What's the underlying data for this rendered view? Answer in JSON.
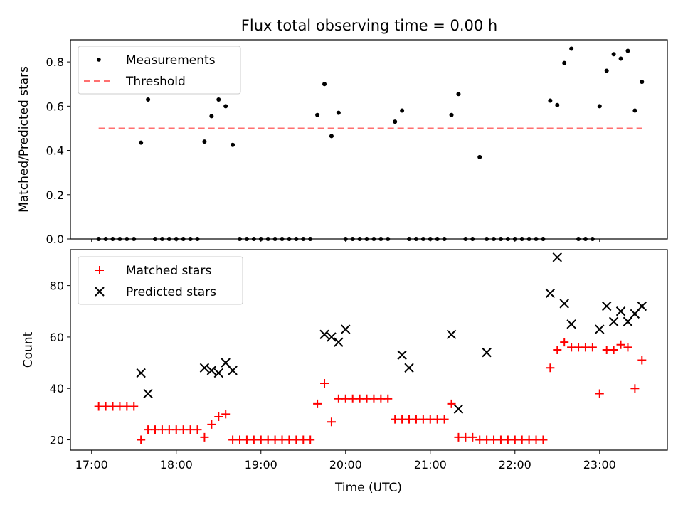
{
  "chart_data": [
    {
      "type": "scatter",
      "title": "Flux total observing time = 0.00 h",
      "xlabel": "",
      "ylabel": "Matched/Predicted stars",
      "xlim": [
        "16:45",
        "23:48"
      ],
      "ylim": [
        0,
        0.9
      ],
      "yticks": [
        0.0,
        0.2,
        0.4,
        0.6,
        0.8
      ],
      "ytick_labels": [
        "0.0",
        "0.2",
        "0.4",
        "0.6",
        "0.8"
      ],
      "legend_position": "top-left",
      "grid": false,
      "series": [
        {
          "name": "Measurements",
          "marker": "dot",
          "color": "#000000",
          "x": [
            "17:05",
            "17:10",
            "17:15",
            "17:20",
            "17:25",
            "17:30",
            "17:35",
            "17:40",
            "17:45",
            "17:50",
            "17:55",
            "18:00",
            "18:05",
            "18:10",
            "18:15",
            "18:20",
            "18:25",
            "18:30",
            "18:35",
            "18:40",
            "18:45",
            "18:50",
            "18:55",
            "19:00",
            "19:05",
            "19:10",
            "19:15",
            "19:20",
            "19:25",
            "19:30",
            "19:35",
            "19:40",
            "19:45",
            "19:50",
            "19:55",
            "20:00",
            "20:05",
            "20:10",
            "20:15",
            "20:20",
            "20:25",
            "20:30",
            "20:35",
            "20:40",
            "20:45",
            "20:50",
            "20:55",
            "21:00",
            "21:05",
            "21:10",
            "21:15",
            "21:20",
            "21:25",
            "21:30",
            "21:35",
            "21:40",
            "21:45",
            "21:50",
            "21:55",
            "22:00",
            "22:05",
            "22:10",
            "22:15",
            "22:20",
            "22:25",
            "22:30",
            "22:35",
            "22:40",
            "22:45",
            "22:50",
            "22:55",
            "23:00",
            "23:05",
            "23:10",
            "23:15",
            "23:20",
            "23:25",
            "23:30"
          ],
          "y": [
            0,
            0,
            0,
            0,
            0,
            0,
            0.435,
            0.63,
            0,
            0,
            0,
            0,
            0,
            0,
            0,
            0.44,
            0.555,
            0.63,
            0.6,
            0.425,
            0,
            0,
            0,
            0,
            0,
            0,
            0,
            0,
            0,
            0,
            0,
            0.56,
            0.7,
            0.465,
            0.57,
            0,
            0,
            0,
            0,
            0,
            0,
            0,
            0.53,
            0.58,
            0,
            0,
            0,
            0,
            0,
            0,
            0.56,
            0.655,
            0,
            0,
            0.37,
            0,
            0,
            0,
            0,
            0,
            0,
            0,
            0,
            0,
            0.625,
            0.605,
            0.795,
            0.86,
            0,
            0,
            0,
            0.6,
            0.76,
            0.835,
            0.815,
            0.85,
            0.58,
            0.71
          ]
        },
        {
          "name": "Threshold",
          "line_style": "dashed",
          "color": "#ff7070",
          "x": [
            "17:05",
            "23:30"
          ],
          "y": [
            0.5,
            0.5
          ]
        }
      ]
    },
    {
      "type": "scatter",
      "xlabel": "Time (UTC)",
      "ylabel": "Count",
      "xlim": [
        "16:45",
        "23:48"
      ],
      "ylim": [
        16,
        94
      ],
      "xticks": [
        "17:00",
        "18:00",
        "19:00",
        "20:00",
        "21:00",
        "22:00",
        "23:00"
      ],
      "yticks": [
        20,
        40,
        60,
        80
      ],
      "ytick_labels": [
        "20",
        "40",
        "60",
        "80"
      ],
      "legend_position": "top-left",
      "grid": false,
      "series": [
        {
          "name": "Matched stars",
          "marker": "plus",
          "color": "#ff0000",
          "x": [
            "17:05",
            "17:10",
            "17:15",
            "17:20",
            "17:25",
            "17:30",
            "17:35",
            "17:40",
            "17:45",
            "17:50",
            "17:55",
            "18:00",
            "18:05",
            "18:10",
            "18:15",
            "18:20",
            "18:25",
            "18:30",
            "18:35",
            "18:40",
            "18:45",
            "18:50",
            "18:55",
            "19:00",
            "19:05",
            "19:10",
            "19:15",
            "19:20",
            "19:25",
            "19:30",
            "19:35",
            "19:40",
            "19:45",
            "19:50",
            "19:55",
            "20:00",
            "20:05",
            "20:10",
            "20:15",
            "20:20",
            "20:25",
            "20:30",
            "20:35",
            "20:40",
            "20:45",
            "20:50",
            "20:55",
            "21:00",
            "21:05",
            "21:10",
            "21:15",
            "21:20",
            "21:25",
            "21:30",
            "21:35",
            "21:40",
            "21:45",
            "21:50",
            "21:55",
            "22:00",
            "22:05",
            "22:10",
            "22:15",
            "22:20",
            "22:25",
            "22:30",
            "22:35",
            "22:40",
            "22:45",
            "22:50",
            "22:55",
            "23:00",
            "23:05",
            "23:10",
            "23:15",
            "23:20",
            "23:25",
            "23:30"
          ],
          "y": [
            33,
            33,
            33,
            33,
            33,
            33,
            20,
            24,
            24,
            24,
            24,
            24,
            24,
            24,
            24,
            21,
            26,
            29,
            30,
            20,
            20,
            20,
            20,
            20,
            20,
            20,
            20,
            20,
            20,
            20,
            20,
            34,
            42,
            27,
            36,
            36,
            36,
            36,
            36,
            36,
            36,
            36,
            28,
            28,
            28,
            28,
            28,
            28,
            28,
            28,
            34,
            21,
            21,
            21,
            20,
            20,
            20,
            20,
            20,
            20,
            20,
            20,
            20,
            20,
            48,
            55,
            58,
            56,
            56,
            56,
            56,
            38,
            55,
            55,
            57,
            56,
            40,
            51
          ]
        },
        {
          "name": "Predicted stars",
          "marker": "x",
          "color": "#000000",
          "x": [
            "17:35",
            "17:40",
            "18:20",
            "18:25",
            "18:30",
            "18:35",
            "18:40",
            "19:45",
            "19:50",
            "19:55",
            "20:00",
            "20:40",
            "20:45",
            "21:15",
            "21:20",
            "21:40",
            "22:25",
            "22:30",
            "22:35",
            "22:40",
            "23:00",
            "23:05",
            "23:10",
            "23:15",
            "23:20",
            "23:25",
            "23:30"
          ],
          "y": [
            46,
            38,
            48,
            47,
            46,
            50,
            47,
            61,
            60,
            58,
            63,
            53,
            48,
            61,
            32,
            54,
            77,
            91,
            73,
            65,
            63,
            72,
            66,
            70,
            66,
            69,
            72
          ]
        }
      ]
    }
  ]
}
